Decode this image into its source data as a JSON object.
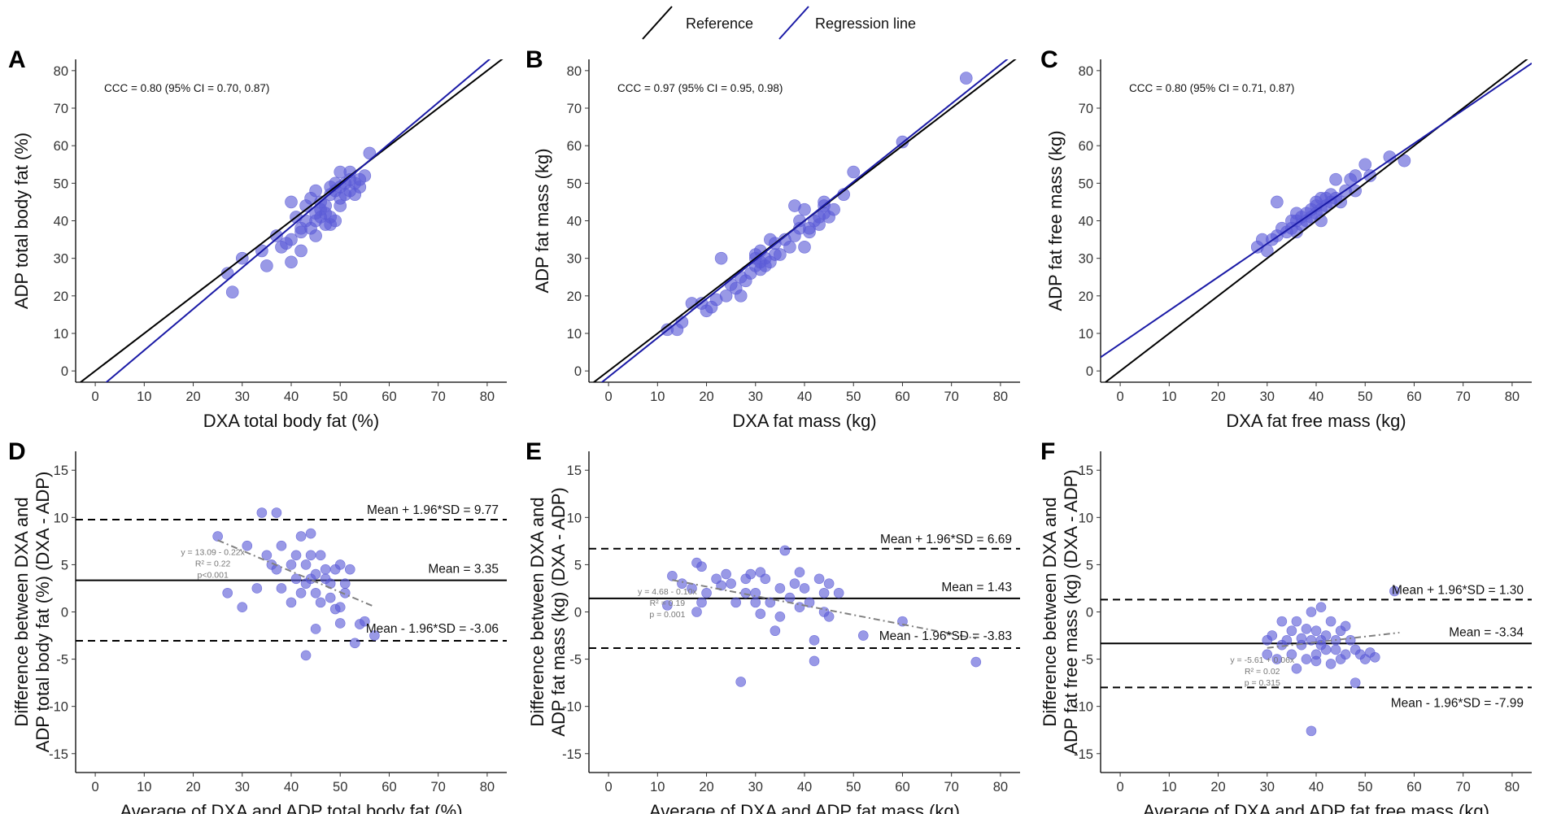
{
  "legend": {
    "reference_label": "Reference",
    "regression_label": "Regression line",
    "colors": {
      "reference": "#000000",
      "regression": "#1a1aa6",
      "points": "#5a5ad6",
      "trend": "#808080"
    }
  },
  "chart_data": [
    {
      "id": "A",
      "type": "scatter",
      "letter": "A",
      "xlabel": "DXA total body fat (%)",
      "ylabel": "ADP total body fat (%)",
      "xlim": [
        -4,
        84
      ],
      "ylim": [
        -3,
        83
      ],
      "xticks": [
        0,
        10,
        20,
        30,
        40,
        50,
        60,
        70,
        80
      ],
      "yticks": [
        0,
        10,
        20,
        30,
        40,
        50,
        60,
        70,
        80
      ],
      "annotation": "CCC = 0.80 (95% CI = 0.70, 0.87)",
      "regression": {
        "intercept": -5.5,
        "slope": 1.1
      },
      "points": [
        [
          27,
          26
        ],
        [
          28,
          21
        ],
        [
          30,
          30
        ],
        [
          34,
          32
        ],
        [
          35,
          28
        ],
        [
          37,
          36
        ],
        [
          38,
          33
        ],
        [
          39,
          34
        ],
        [
          40,
          29
        ],
        [
          40,
          35
        ],
        [
          40,
          45
        ],
        [
          42,
          38
        ],
        [
          42,
          37
        ],
        [
          43,
          40
        ],
        [
          43,
          44
        ],
        [
          44,
          38
        ],
        [
          44,
          46
        ],
        [
          45,
          40
        ],
        [
          45,
          42
        ],
        [
          45,
          36
        ],
        [
          46,
          41
        ],
        [
          46,
          43
        ],
        [
          46,
          45
        ],
        [
          47,
          39
        ],
        [
          47,
          42
        ],
        [
          47,
          44
        ],
        [
          48,
          39
        ],
        [
          48,
          41
        ],
        [
          48,
          47
        ],
        [
          48,
          49
        ],
        [
          49,
          40
        ],
        [
          49,
          48
        ],
        [
          49,
          50
        ],
        [
          50,
          44
        ],
        [
          50,
          46
        ],
        [
          50,
          49
        ],
        [
          50,
          53
        ],
        [
          51,
          47
        ],
        [
          51,
          50
        ],
        [
          52,
          48
        ],
        [
          52,
          51
        ],
        [
          52,
          53
        ],
        [
          53,
          47
        ],
        [
          53,
          50
        ],
        [
          54,
          49
        ],
        [
          54,
          51
        ],
        [
          55,
          52
        ],
        [
          56,
          58
        ],
        [
          45,
          48
        ],
        [
          41,
          41
        ],
        [
          42,
          32
        ]
      ]
    },
    {
      "id": "B",
      "type": "scatter",
      "letter": "B",
      "xlabel": "DXA fat mass (kg)",
      "ylabel": "ADP fat mass (kg)",
      "xlim": [
        -4,
        84
      ],
      "ylim": [
        -3,
        83
      ],
      "xticks": [
        0,
        10,
        20,
        30,
        40,
        50,
        60,
        70,
        80
      ],
      "yticks": [
        0,
        10,
        20,
        30,
        40,
        50,
        60,
        70,
        80
      ],
      "annotation": "CCC = 0.97 (95% CI = 0.95, 0.98)",
      "regression": {
        "intercept": -1.6,
        "slope": 1.04
      },
      "points": [
        [
          12,
          11
        ],
        [
          14,
          11
        ],
        [
          15,
          13
        ],
        [
          17,
          18
        ],
        [
          19,
          18
        ],
        [
          20,
          16
        ],
        [
          21,
          17
        ],
        [
          22,
          19
        ],
        [
          23,
          30
        ],
        [
          24,
          20
        ],
        [
          25,
          23
        ],
        [
          26,
          22
        ],
        [
          27,
          25
        ],
        [
          28,
          24
        ],
        [
          29,
          26
        ],
        [
          30,
          28
        ],
        [
          30,
          30
        ],
        [
          31,
          27
        ],
        [
          31,
          29
        ],
        [
          32,
          30
        ],
        [
          32,
          28
        ],
        [
          33,
          29
        ],
        [
          33,
          35
        ],
        [
          34,
          31
        ],
        [
          34,
          34
        ],
        [
          35,
          31
        ],
        [
          36,
          35
        ],
        [
          37,
          33
        ],
        [
          38,
          36
        ],
        [
          38,
          44
        ],
        [
          39,
          38
        ],
        [
          39,
          40
        ],
        [
          40,
          33
        ],
        [
          40,
          43
        ],
        [
          41,
          37
        ],
        [
          41,
          38
        ],
        [
          42,
          40
        ],
        [
          43,
          39
        ],
        [
          43,
          41
        ],
        [
          44,
          42
        ],
        [
          44,
          44
        ],
        [
          44,
          45
        ],
        [
          45,
          41
        ],
        [
          46,
          43
        ],
        [
          48,
          47
        ],
        [
          50,
          53
        ],
        [
          60,
          61
        ],
        [
          73,
          78
        ],
        [
          27,
          20
        ],
        [
          30,
          31
        ],
        [
          31,
          32
        ]
      ]
    },
    {
      "id": "C",
      "type": "scatter",
      "letter": "C",
      "xlabel": "DXA fat free mass (kg)",
      "ylabel": "ADP fat free mass (kg)",
      "xlim": [
        -4,
        84
      ],
      "ylim": [
        -3,
        83
      ],
      "xticks": [
        0,
        10,
        20,
        30,
        40,
        50,
        60,
        70,
        80
      ],
      "yticks": [
        0,
        10,
        20,
        30,
        40,
        50,
        60,
        70,
        80
      ],
      "annotation": "CCC = 0.80 (95% CI = 0.71, 0.87)",
      "regression": {
        "intercept": 7.2,
        "slope": 0.89
      },
      "points": [
        [
          28,
          33
        ],
        [
          29,
          35
        ],
        [
          30,
          32
        ],
        [
          31,
          35
        ],
        [
          32,
          36
        ],
        [
          32,
          45
        ],
        [
          33,
          38
        ],
        [
          34,
          37
        ],
        [
          35,
          40
        ],
        [
          35,
          38
        ],
        [
          36,
          40
        ],
        [
          36,
          42
        ],
        [
          37,
          39
        ],
        [
          37,
          41
        ],
        [
          38,
          40
        ],
        [
          38,
          42
        ],
        [
          39,
          41
        ],
        [
          39,
          43
        ],
        [
          40,
          42
        ],
        [
          40,
          44
        ],
        [
          40,
          45
        ],
        [
          41,
          40
        ],
        [
          41,
          43
        ],
        [
          42,
          44
        ],
        [
          42,
          46
        ],
        [
          43,
          45
        ],
        [
          43,
          47
        ],
        [
          44,
          46
        ],
        [
          44,
          51
        ],
        [
          45,
          45
        ],
        [
          46,
          48
        ],
        [
          47,
          51
        ],
        [
          48,
          48
        ],
        [
          48,
          52
        ],
        [
          50,
          55
        ],
        [
          51,
          52
        ],
        [
          55,
          57
        ],
        [
          58,
          56
        ],
        [
          36,
          37
        ],
        [
          41,
          46
        ]
      ]
    },
    {
      "id": "D",
      "type": "scatter",
      "letter": "D",
      "xlabel": "Average of DXA and ADP total body fat (%)",
      "ylabel_line1": "Difference between DXA and",
      "ylabel_line2": "ADP total body fat (%) (DXA - ADP)",
      "xlim": [
        -4,
        84
      ],
      "ylim": [
        -17,
        17
      ],
      "xticks": [
        0,
        10,
        20,
        30,
        40,
        50,
        60,
        70,
        80
      ],
      "yticks": [
        -15,
        -10,
        -5,
        0,
        5,
        10,
        15
      ],
      "mean": 3.35,
      "upper_loa": 9.77,
      "lower_loa": -3.06,
      "mean_label": "Mean = 3.35",
      "upper_label": "Mean + 1.96*SD = 9.77",
      "lower_label": "Mean - 1.96*SD = -3.06",
      "trend": {
        "intercept": 13.09,
        "slope": -0.22,
        "x_range": [
          25,
          57
        ]
      },
      "trend_eq": "y = 13.09 - 0.22x",
      "trend_r2": "R² = 0.22",
      "trend_p": "p<0.001",
      "points": [
        [
          25,
          8
        ],
        [
          27,
          2
        ],
        [
          30,
          0.5
        ],
        [
          31,
          7
        ],
        [
          33,
          2.5
        ],
        [
          34,
          10.5
        ],
        [
          35,
          6
        ],
        [
          36,
          5
        ],
        [
          37,
          4.5
        ],
        [
          37,
          10.5
        ],
        [
          38,
          7
        ],
        [
          40,
          5
        ],
        [
          40,
          1
        ],
        [
          41,
          3.5
        ],
        [
          41,
          6
        ],
        [
          42,
          2
        ],
        [
          42,
          8
        ],
        [
          43,
          3
        ],
        [
          43,
          5
        ],
        [
          43,
          -4.6
        ],
        [
          44,
          3.5
        ],
        [
          44,
          6
        ],
        [
          44,
          8.3
        ],
        [
          45,
          2
        ],
        [
          45,
          4
        ],
        [
          45,
          -1.8
        ],
        [
          46,
          6
        ],
        [
          46,
          1
        ],
        [
          47,
          3.5
        ],
        [
          47,
          4.5
        ],
        [
          48,
          3
        ],
        [
          48,
          1.5
        ],
        [
          49,
          0.3
        ],
        [
          49,
          4.5
        ],
        [
          50,
          5
        ],
        [
          50,
          0.5
        ],
        [
          50,
          -1.2
        ],
        [
          51,
          3
        ],
        [
          51,
          2
        ],
        [
          52,
          4.5
        ],
        [
          53,
          -3.3
        ],
        [
          54,
          -1.3
        ],
        [
          55,
          -1
        ],
        [
          57,
          -2.5
        ],
        [
          38,
          2.5
        ]
      ]
    },
    {
      "id": "E",
      "type": "scatter",
      "letter": "E",
      "xlabel": "Average of DXA and ADP fat mass (kg)",
      "ylabel_line1": "Difference between DXA and",
      "ylabel_line2": "ADP fat mass (kg) (DXA - ADP)",
      "xlim": [
        -4,
        84
      ],
      "ylim": [
        -17,
        17
      ],
      "xticks": [
        0,
        10,
        20,
        30,
        40,
        50,
        60,
        70,
        80
      ],
      "yticks": [
        -15,
        -10,
        -5,
        0,
        5,
        10,
        15
      ],
      "mean": 1.43,
      "upper_loa": 6.69,
      "lower_loa": -3.83,
      "mean_label": "Mean = 1.43",
      "upper_label": "Mean + 1.96*SD = 6.69",
      "lower_label": "Mean - 1.96*SD = -3.83",
      "trend": {
        "intercept": 4.68,
        "slope": -0.1,
        "x_range": [
          13,
          75
        ]
      },
      "trend_eq": "y = 4.68 - 0.10x",
      "trend_r2": "R² = 0.19",
      "trend_p": "p = 0.001",
      "points": [
        [
          12,
          0.7
        ],
        [
          13,
          3.8
        ],
        [
          15,
          3
        ],
        [
          17,
          2.5
        ],
        [
          18,
          5.2
        ],
        [
          18,
          0
        ],
        [
          19,
          1
        ],
        [
          19,
          4.8
        ],
        [
          20,
          2
        ],
        [
          22,
          3.5
        ],
        [
          23,
          2.8
        ],
        [
          24,
          4
        ],
        [
          25,
          3
        ],
        [
          26,
          1
        ],
        [
          27,
          -7.4
        ],
        [
          28,
          3.5
        ],
        [
          28,
          2
        ],
        [
          29,
          4
        ],
        [
          30,
          1
        ],
        [
          30,
          2
        ],
        [
          31,
          -0.2
        ],
        [
          31,
          4.2
        ],
        [
          32,
          3.5
        ],
        [
          33,
          1
        ],
        [
          34,
          -2
        ],
        [
          35,
          2.5
        ],
        [
          35,
          -0.5
        ],
        [
          36,
          6.5
        ],
        [
          37,
          1.5
        ],
        [
          38,
          3
        ],
        [
          39,
          0.5
        ],
        [
          39,
          4.2
        ],
        [
          40,
          2.5
        ],
        [
          41,
          1
        ],
        [
          42,
          -5.2
        ],
        [
          42,
          -3
        ],
        [
          43,
          3.5
        ],
        [
          44,
          0
        ],
        [
          44,
          2
        ],
        [
          45,
          -0.5
        ],
        [
          45,
          3
        ],
        [
          47,
          2
        ],
        [
          52,
          -2.5
        ],
        [
          60,
          -1
        ],
        [
          75,
          -5.3
        ]
      ]
    },
    {
      "id": "F",
      "type": "scatter",
      "letter": "F",
      "xlabel": "Average of DXA and ADP fat free mass (kg)",
      "ylabel_line1": "Difference between DXA and",
      "ylabel_line2": "ADP fat free mass (kg) (DXA - ADP)",
      "xlim": [
        -4,
        84
      ],
      "ylim": [
        -17,
        17
      ],
      "xticks": [
        0,
        10,
        20,
        30,
        40,
        50,
        60,
        70,
        80
      ],
      "yticks": [
        -15,
        -10,
        -5,
        0,
        5,
        10,
        15
      ],
      "mean": -3.34,
      "upper_loa": 1.3,
      "lower_loa": -7.99,
      "mean_label": "Mean = -3.34",
      "upper_label": "Mean + 1.96*SD = 1.30",
      "lower_label": "Mean - 1.96*SD = -7.99",
      "trend": {
        "intercept": -5.61,
        "slope": 0.06,
        "x_range": [
          30,
          57
        ]
      },
      "trend_eq": "y = -5.61 + 0.06x",
      "trend_r2": "R² = 0.02",
      "trend_p": "p = 0.315",
      "points": [
        [
          30,
          -3
        ],
        [
          30,
          -4.5
        ],
        [
          31,
          -2.5
        ],
        [
          32,
          -5
        ],
        [
          33,
          -1
        ],
        [
          33,
          -3.5
        ],
        [
          34,
          -3
        ],
        [
          35,
          -2
        ],
        [
          35,
          -4.5
        ],
        [
          36,
          -6
        ],
        [
          36,
          -1
        ],
        [
          37,
          -3.5
        ],
        [
          37,
          -2.8
        ],
        [
          38,
          -5
        ],
        [
          38,
          -1.8
        ],
        [
          39,
          -3
        ],
        [
          39,
          -12.6
        ],
        [
          39,
          0
        ],
        [
          40,
          -2
        ],
        [
          40,
          -4.5
        ],
        [
          40,
          -5.2
        ],
        [
          41,
          -3
        ],
        [
          41,
          0.5
        ],
        [
          41,
          -3.5
        ],
        [
          42,
          -4
        ],
        [
          42,
          -2.5
        ],
        [
          43,
          -5.5
        ],
        [
          43,
          -1
        ],
        [
          44,
          -3
        ],
        [
          44,
          -4
        ],
        [
          45,
          -2
        ],
        [
          45,
          -5
        ],
        [
          46,
          -4.5
        ],
        [
          46,
          -1.5
        ],
        [
          47,
          -3
        ],
        [
          48,
          -7.5
        ],
        [
          48,
          -4
        ],
        [
          49,
          -4.5
        ],
        [
          50,
          -5
        ],
        [
          51,
          -4.3
        ],
        [
          52,
          -4.8
        ],
        [
          56,
          2.2
        ]
      ]
    }
  ]
}
